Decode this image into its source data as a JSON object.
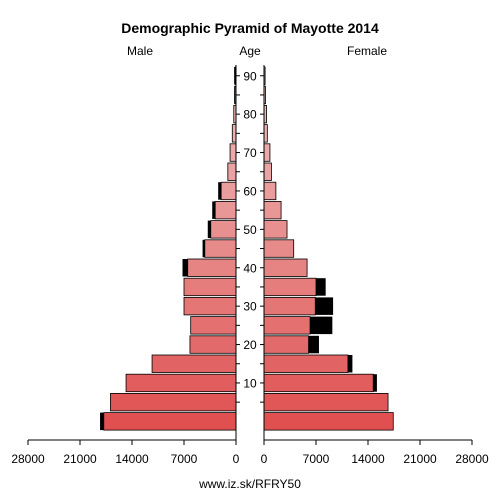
{
  "chart_data": {
    "type": "bar",
    "title": "Demographic Pyramid of Mayotte 2014",
    "left_label": "Male",
    "center_label": "Age",
    "right_label": "Female",
    "footer": "www.iz.sk/RFRY50",
    "age_groups": [
      "0-4",
      "5-9",
      "10-14",
      "15-19",
      "20-24",
      "25-29",
      "30-34",
      "35-39",
      "40-44",
      "45-49",
      "50-54",
      "55-59",
      "60-64",
      "65-69",
      "70-74",
      "75-79",
      "80-84",
      "85-89",
      "90-94"
    ],
    "age_ticks": [
      10,
      20,
      30,
      40,
      50,
      60,
      70,
      80,
      90
    ],
    "value_ticks": [
      0,
      7000,
      14000,
      21000,
      28000
    ],
    "value_tick_labels": [
      "0",
      "7000",
      "14000",
      "21000",
      "28000"
    ],
    "xlim": [
      0,
      28000
    ],
    "series": [
      {
        "name": "Male",
        "values": [
          17800,
          16900,
          14800,
          11300,
          6200,
          6100,
          7000,
          7000,
          6500,
          4200,
          3400,
          2800,
          2000,
          1100,
          800,
          500,
          300,
          150,
          100
        ],
        "extra": [
          500,
          0,
          0,
          0,
          0,
          0,
          0,
          0,
          700,
          300,
          400,
          400,
          400,
          0,
          0,
          0,
          0,
          100,
          150
        ]
      },
      {
        "name": "Female",
        "values": [
          17400,
          16700,
          14700,
          11300,
          6000,
          6200,
          6900,
          7000,
          5800,
          4000,
          3100,
          2300,
          1600,
          1000,
          800,
          450,
          350,
          200,
          150
        ],
        "extra": [
          0,
          0,
          500,
          600,
          1400,
          3000,
          2400,
          1300,
          0,
          0,
          0,
          0,
          0,
          0,
          0,
          0,
          0,
          0,
          0
        ]
      }
    ],
    "colors": {
      "male_low": "#e05050",
      "male_high": "#eec3c3",
      "female_low": "#e05050",
      "female_high": "#eec3c3",
      "extra": "#000000"
    }
  }
}
